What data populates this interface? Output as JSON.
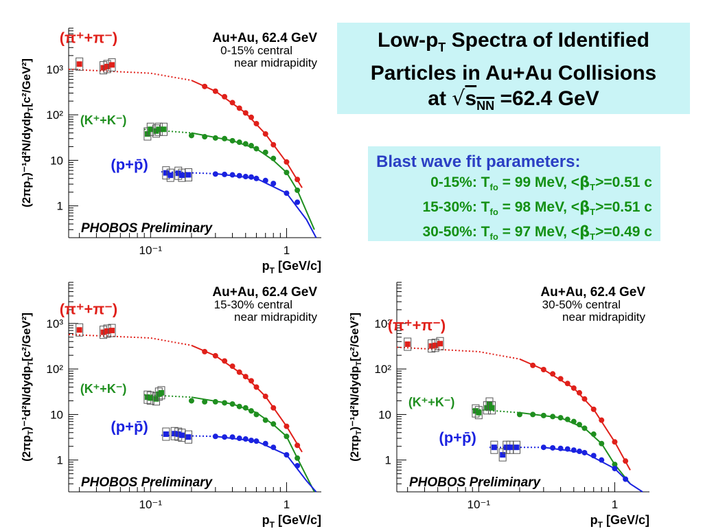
{
  "slide": {
    "title_line1": "Low-p",
    "title_line1_sub": "T",
    "title_line1_rest": "  Spectra of Identified",
    "title_line2": "Particles in  Au+Au Collisions",
    "title_line3_pre": "at ",
    "title_line3_root": "√",
    "title_line3_s": "s",
    "title_line3_sub": "NN",
    "title_line3_rest": " =62.4 GeV",
    "fit_header": "Blast wave fit parameters:",
    "fit_rows": [
      {
        "range": "0-15%: T",
        "sub": "fo",
        "temp": " = 99 MeV, <",
        "beta": "β",
        "tsub": "T",
        "val": ">=0.51 c"
      },
      {
        "range": "15-30%: T",
        "sub": "fo",
        "temp": " = 98 MeV, <",
        "beta": "β",
        "tsub": "T",
        "val": ">=0.51 c"
      },
      {
        "range": "30-50%: T",
        "sub": "fo",
        "temp": " = 97 MeV, <",
        "beta": "β",
        "tsub": "T",
        "val": ">=0.49 c"
      }
    ]
  },
  "common": {
    "system": "Au+Au, 62.4 GeV",
    "rapidity": "near midrapidity",
    "preliminary": "PHOBOS Preliminary",
    "xlabel": "p",
    "xlabel_sub": "T",
    "xlabel_rest": " [GeV/c]",
    "ylabel": "(2πp",
    "ylabel_sub": "T",
    "ylabel_rest": ")⁻¹d²N/dydp",
    "ylabel_sub2": "T",
    "ylabel_rest2": "[c²/GeV²]",
    "pion_label": "(π⁺+π⁻)",
    "kaon_label": "(K⁺+K⁻)",
    "proton_label": "(p+p̄)",
    "xtick_labels": [
      "10⁻¹",
      "1"
    ],
    "ytick_labels": [
      "1",
      "10",
      "10²",
      "10³"
    ]
  },
  "colors": {
    "pion": "#e0201a",
    "kaon": "#1f8f1f",
    "proton": "#1a22e0",
    "box": "#c9f4f6"
  },
  "chart_data": [
    {
      "type": "scatter",
      "centrality": "0-15% central",
      "xlabel": "pT [GeV/c]",
      "ylabel": "(2πpT)⁻¹d²N/dydpT[c²/GeV²]",
      "xscale": "log",
      "yscale": "log",
      "xlim": [
        0.025,
        1.8
      ],
      "ylim": [
        0.2,
        8000
      ],
      "series": [
        {
          "name": "(π⁺+π⁻)",
          "low_pt": [
            [
              0.03,
              1300
            ],
            [
              0.045,
              1080
            ],
            [
              0.048,
              1150
            ],
            [
              0.052,
              1250
            ]
          ],
          "points": [
            [
              0.25,
              420
            ],
            [
              0.3,
              330
            ],
            [
              0.35,
              250
            ],
            [
              0.4,
              185
            ],
            [
              0.45,
              140
            ],
            [
              0.5,
              110
            ],
            [
              0.55,
              88
            ],
            [
              0.6,
              64
            ],
            [
              0.7,
              38
            ],
            [
              0.8,
              22
            ],
            [
              1.0,
              9.2
            ],
            [
              1.2,
              3.8
            ]
          ],
          "fit": [
            [
              0.025,
              1000
            ],
            [
              0.1,
              820
            ],
            [
              0.2,
              570
            ],
            [
              0.3,
              330
            ],
            [
              0.5,
              110
            ],
            [
              0.7,
              38
            ],
            [
              1.0,
              9
            ],
            [
              1.3,
              2.5
            ]
          ]
        },
        {
          "name": "(K⁺+K⁻)",
          "low_pt": [
            [
              0.095,
              38
            ],
            [
              0.1,
              48
            ],
            [
              0.11,
              44
            ],
            [
              0.115,
              48
            ],
            [
              0.125,
              48
            ]
          ],
          "points": [
            [
              0.2,
              35
            ],
            [
              0.25,
              33
            ],
            [
              0.3,
              31
            ],
            [
              0.35,
              30
            ],
            [
              0.4,
              27
            ],
            [
              0.45,
              25
            ],
            [
              0.5,
              23
            ],
            [
              0.55,
              21
            ],
            [
              0.6,
              18
            ],
            [
              0.7,
              15
            ],
            [
              0.8,
              11
            ],
            [
              1.0,
              5.4
            ],
            [
              1.2,
              2.2
            ]
          ],
          "fit": [
            [
              0.09,
              48
            ],
            [
              0.2,
              40
            ],
            [
              0.4,
              27
            ],
            [
              0.6,
              18
            ],
            [
              0.8,
              10
            ],
            [
              1.0,
              5.4
            ],
            [
              1.2,
              2.2
            ],
            [
              1.6,
              0.3
            ]
          ]
        },
        {
          "name": "(p+p̄)",
          "low_pt": [
            [
              0.13,
              5.3
            ],
            [
              0.14,
              4.7
            ],
            [
              0.16,
              5.2
            ],
            [
              0.17,
              4.7
            ],
            [
              0.19,
              4.8
            ]
          ],
          "points": [
            [
              0.3,
              5.0
            ],
            [
              0.35,
              4.9
            ],
            [
              0.4,
              4.8
            ],
            [
              0.45,
              4.6
            ],
            [
              0.5,
              4.4
            ],
            [
              0.55,
              4.3
            ],
            [
              0.6,
              4.0
            ],
            [
              0.7,
              3.6
            ],
            [
              0.8,
              3.1
            ],
            [
              1.0,
              1.9
            ],
            [
              1.2,
              1.2
            ]
          ],
          "fit": [
            [
              0.12,
              5.6
            ],
            [
              0.3,
              5.1
            ],
            [
              0.6,
              4.0
            ],
            [
              1.0,
              1.9
            ],
            [
              1.4,
              0.5
            ],
            [
              1.65,
              0.2
            ]
          ]
        }
      ]
    },
    {
      "type": "scatter",
      "centrality": "15-30% central",
      "xlabel": "pT [GeV/c]",
      "ylabel": "(2πpT)⁻¹d²N/dydpT[c²/GeV²]",
      "xscale": "log",
      "yscale": "log",
      "xlim": [
        0.025,
        1.8
      ],
      "ylim": [
        0.2,
        8000
      ],
      "series": [
        {
          "name": "(π⁺+π⁻)",
          "low_pt": [
            [
              0.03,
              720
            ],
            [
              0.045,
              640
            ],
            [
              0.048,
              680
            ],
            [
              0.052,
              700
            ]
          ],
          "points": [
            [
              0.25,
              240
            ],
            [
              0.3,
              195
            ],
            [
              0.35,
              150
            ],
            [
              0.4,
              115
            ],
            [
              0.45,
              85
            ],
            [
              0.5,
              68
            ],
            [
              0.55,
              55
            ],
            [
              0.6,
              40
            ],
            [
              0.7,
              25
            ],
            [
              0.8,
              14
            ],
            [
              1.0,
              5.5
            ],
            [
              1.2,
              2.1
            ]
          ],
          "fit": [
            [
              0.025,
              570
            ],
            [
              0.1,
              480
            ],
            [
              0.2,
              330
            ],
            [
              0.3,
              195
            ],
            [
              0.5,
              68
            ],
            [
              0.7,
              25
            ],
            [
              1.0,
              5.5
            ],
            [
              1.3,
              1.5
            ]
          ]
        },
        {
          "name": "(K⁺+K⁻)",
          "low_pt": [
            [
              0.095,
              24
            ],
            [
              0.1,
              23
            ],
            [
              0.11,
              22
            ],
            [
              0.115,
              28
            ],
            [
              0.12,
              30
            ]
          ],
          "points": [
            [
              0.2,
              20
            ],
            [
              0.25,
              19
            ],
            [
              0.3,
              19
            ],
            [
              0.35,
              18
            ],
            [
              0.4,
              17
            ],
            [
              0.45,
              15
            ],
            [
              0.5,
              14
            ],
            [
              0.55,
              12
            ],
            [
              0.6,
              10
            ],
            [
              0.7,
              7.5
            ],
            [
              0.8,
              6.2
            ],
            [
              1.0,
              3.3
            ],
            [
              1.2,
              1.1
            ]
          ],
          "fit": [
            [
              0.09,
              27
            ],
            [
              0.2,
              24
            ],
            [
              0.4,
              17
            ],
            [
              0.6,
              11
            ],
            [
              0.8,
              6
            ],
            [
              1.0,
              3.3
            ],
            [
              1.2,
              1.1
            ],
            [
              1.6,
              0.2
            ]
          ]
        },
        {
          "name": "(p+p̄)",
          "low_pt": [
            [
              0.13,
              3.7
            ],
            [
              0.15,
              3.8
            ],
            [
              0.16,
              3.7
            ],
            [
              0.17,
              3.5
            ],
            [
              0.19,
              3.2
            ]
          ],
          "points": [
            [
              0.3,
              3.3
            ],
            [
              0.35,
              3.2
            ],
            [
              0.4,
              3.2
            ],
            [
              0.45,
              3.0
            ],
            [
              0.5,
              2.9
            ],
            [
              0.55,
              2.7
            ],
            [
              0.6,
              2.6
            ],
            [
              0.7,
              2.3
            ],
            [
              0.8,
              1.9
            ],
            [
              1.0,
              1.3
            ],
            [
              1.2,
              0.75
            ]
          ],
          "fit": [
            [
              0.12,
              3.5
            ],
            [
              0.3,
              3.3
            ],
            [
              0.6,
              2.6
            ],
            [
              1.0,
              1.3
            ],
            [
              1.4,
              0.35
            ],
            [
              1.65,
              0.2
            ]
          ]
        }
      ]
    },
    {
      "type": "scatter",
      "centrality": "30-50% central",
      "xlabel": "pT [GeV/c]",
      "ylabel": "(2πpT)⁻¹d²N/dydpT[c²/GeV²]",
      "xscale": "log",
      "yscale": "log",
      "xlim": [
        0.025,
        1.8
      ],
      "ylim": [
        0.2,
        8000
      ],
      "series": [
        {
          "name": "(π⁺+π⁻)",
          "low_pt": [
            [
              0.03,
              350
            ],
            [
              0.045,
              320
            ],
            [
              0.048,
              330
            ],
            [
              0.052,
              360
            ]
          ],
          "points": [
            [
              0.25,
              120
            ],
            [
              0.3,
              97
            ],
            [
              0.35,
              78
            ],
            [
              0.4,
              61
            ],
            [
              0.45,
              48
            ],
            [
              0.5,
              38
            ],
            [
              0.55,
              30
            ],
            [
              0.6,
              22
            ],
            [
              0.7,
              13
            ],
            [
              0.8,
              7.5
            ],
            [
              1.0,
              2.5
            ],
            [
              1.2,
              0.95
            ]
          ],
          "fit": [
            [
              0.025,
              300
            ],
            [
              0.1,
              240
            ],
            [
              0.2,
              165
            ],
            [
              0.3,
              97
            ],
            [
              0.5,
              38
            ],
            [
              0.7,
              13
            ],
            [
              1.0,
              2.5
            ],
            [
              1.3,
              0.6
            ]
          ]
        },
        {
          "name": "(K⁺+K⁻)",
          "low_pt": [
            [
              0.095,
              12
            ],
            [
              0.1,
              11
            ],
            [
              0.115,
              14
            ],
            [
              0.12,
              17
            ],
            [
              0.125,
              14
            ]
          ],
          "points": [
            [
              0.2,
              10
            ],
            [
              0.25,
              10
            ],
            [
              0.3,
              9.5
            ],
            [
              0.35,
              9
            ],
            [
              0.4,
              8.5
            ],
            [
              0.45,
              7.8
            ],
            [
              0.5,
              7
            ],
            [
              0.55,
              6
            ],
            [
              0.6,
              5
            ],
            [
              0.7,
              3.7
            ],
            [
              0.8,
              2.3
            ],
            [
              1.0,
              0.8
            ]
          ],
          "fit": [
            [
              0.09,
              13
            ],
            [
              0.2,
              11
            ],
            [
              0.4,
              8.5
            ],
            [
              0.6,
              5
            ],
            [
              0.8,
              2.3
            ],
            [
              1.0,
              0.8
            ],
            [
              1.3,
              0.3
            ]
          ]
        },
        {
          "name": "(p+p̄)",
          "low_pt": [
            [
              0.13,
              1.9
            ],
            [
              0.15,
              1.3
            ],
            [
              0.16,
              1.9
            ],
            [
              0.17,
              1.9
            ],
            [
              0.19,
              1.9
            ]
          ],
          "points": [
            [
              0.3,
              1.9
            ],
            [
              0.35,
              1.85
            ],
            [
              0.4,
              1.8
            ],
            [
              0.45,
              1.75
            ],
            [
              0.5,
              1.65
            ],
            [
              0.55,
              1.55
            ],
            [
              0.6,
              1.45
            ],
            [
              0.7,
              1.25
            ],
            [
              0.8,
              1.0
            ],
            [
              1.0,
              0.65
            ],
            [
              1.2,
              0.38
            ]
          ],
          "fit": [
            [
              0.12,
              1.9
            ],
            [
              0.3,
              1.9
            ],
            [
              0.6,
              1.45
            ],
            [
              1.0,
              0.65
            ],
            [
              1.3,
              0.3
            ],
            [
              1.6,
              0.2
            ]
          ]
        }
      ]
    }
  ]
}
